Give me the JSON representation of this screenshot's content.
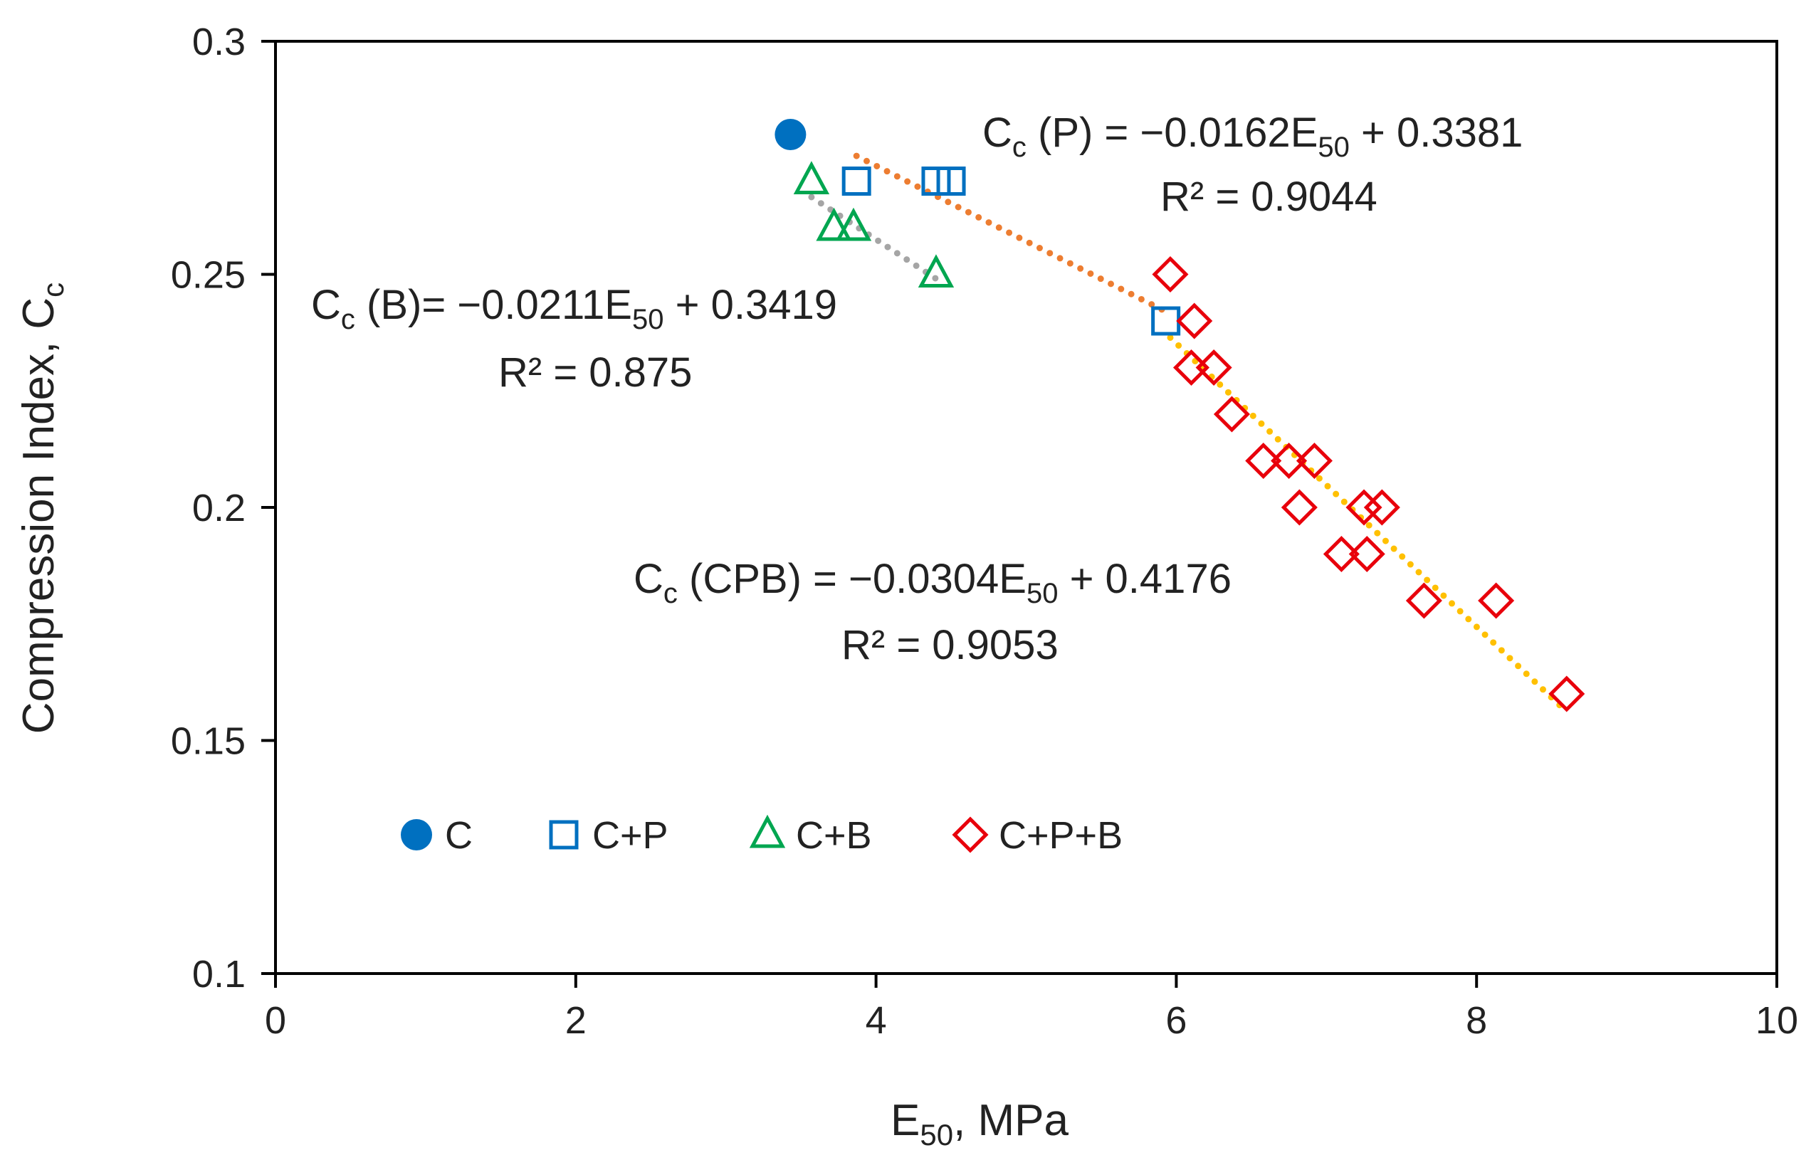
{
  "chart_data": {
    "type": "scatter",
    "title": "",
    "xlabel": {
      "main": "E",
      "sub": "50",
      "rest": ", MPa"
    },
    "ylabel": {
      "main": "Compression Index, C",
      "sub": "c"
    },
    "xlim": [
      0,
      10
    ],
    "ylim": [
      0.1,
      0.3
    ],
    "x_ticks": [
      0,
      2,
      4,
      6,
      8,
      10
    ],
    "x_tick_labels": [
      "0",
      "2",
      "4",
      "6",
      "8",
      "10"
    ],
    "y_ticks": [
      0.1,
      0.15,
      0.2,
      0.25,
      0.3
    ],
    "y_tick_labels": [
      "0.1",
      "0.15",
      "0.2",
      "0.25",
      "0.3"
    ],
    "grid": false,
    "legend_position": "lower-left",
    "series": [
      {
        "name": "C",
        "marker": "circle-filled",
        "color": "#0070C0",
        "points": [
          [
            3.43,
            0.28
          ]
        ]
      },
      {
        "name": "C+P",
        "marker": "square-open",
        "color": "#0070C0",
        "points": [
          [
            3.87,
            0.27
          ],
          [
            4.4,
            0.27
          ],
          [
            4.5,
            0.27
          ],
          [
            5.93,
            0.24
          ]
        ]
      },
      {
        "name": "C+B",
        "marker": "triangle-open",
        "color": "#00A650",
        "points": [
          [
            3.57,
            0.27
          ],
          [
            3.72,
            0.26
          ],
          [
            3.85,
            0.26
          ],
          [
            4.4,
            0.25
          ]
        ]
      },
      {
        "name": "C+P+B",
        "marker": "diamond-open",
        "color": "#E8000B",
        "points": [
          [
            5.96,
            0.25
          ],
          [
            6.12,
            0.24
          ],
          [
            6.1,
            0.23
          ],
          [
            6.25,
            0.23
          ],
          [
            6.37,
            0.22
          ],
          [
            6.58,
            0.21
          ],
          [
            6.75,
            0.21
          ],
          [
            6.92,
            0.21
          ],
          [
            6.82,
            0.2
          ],
          [
            7.25,
            0.2
          ],
          [
            7.37,
            0.2
          ],
          [
            7.1,
            0.19
          ],
          [
            7.27,
            0.19
          ],
          [
            7.65,
            0.18
          ],
          [
            8.13,
            0.18
          ],
          [
            8.6,
            0.16
          ]
        ]
      }
    ],
    "trendlines": [
      {
        "name": "P",
        "color": "#ED7D31",
        "slope": -0.0162,
        "intercept": 0.3381,
        "x_range": [
          3.87,
          5.93
        ]
      },
      {
        "name": "B",
        "color": "#A5A5A5",
        "slope": -0.0211,
        "intercept": 0.3419,
        "x_range": [
          3.57,
          4.4
        ]
      },
      {
        "name": "CPB",
        "color": "#FFC000",
        "slope": -0.0304,
        "intercept": 0.4176,
        "x_range": [
          5.96,
          8.6
        ]
      }
    ],
    "annotations": {
      "p": {
        "eq_prefix": "C",
        "eq_sub": "c",
        "eq_mid": " (P) = −0.0162E",
        "eq_sub2": "50",
        "eq_tail": " + 0.3381",
        "r2": "R² = 0.9044"
      },
      "b": {
        "eq_prefix": "C",
        "eq_sub": "c",
        "eq_mid": " (B)= −0.0211E",
        "eq_sub2": "50",
        "eq_tail": " + 0.3419",
        "r2": "R² = 0.875"
      },
      "cpb": {
        "eq_prefix": "C",
        "eq_sub": "c",
        "eq_mid": " (CPB) = −0.0304E",
        "eq_sub2": "50",
        "eq_tail": " + 0.4176",
        "r2": "R² = 0.9053"
      }
    }
  }
}
